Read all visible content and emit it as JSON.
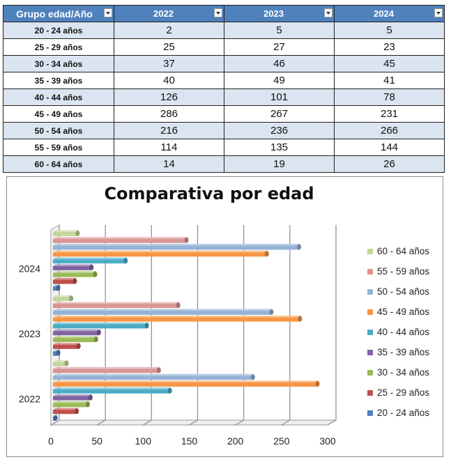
{
  "table": {
    "headers": [
      "Grupo edad/Año",
      "2022",
      "2023",
      "2024"
    ],
    "rows": [
      {
        "age": "20 - 24 años",
        "values": [
          "2",
          "5",
          "5"
        ]
      },
      {
        "age": "25 - 29 años",
        "values": [
          "25",
          "27",
          "23"
        ]
      },
      {
        "age": "30 - 34 años",
        "values": [
          "37",
          "46",
          "45"
        ]
      },
      {
        "age": "35 - 39 años",
        "values": [
          "40",
          "49",
          "41"
        ]
      },
      {
        "age": "40 - 44 años",
        "values": [
          "126",
          "101",
          "78"
        ]
      },
      {
        "age": "45 - 49 años",
        "values": [
          "286",
          "267",
          "231"
        ]
      },
      {
        "age": "50 - 54 años",
        "values": [
          "216",
          "236",
          "266"
        ]
      },
      {
        "age": "55 - 59 años",
        "values": [
          "114",
          "135",
          "144"
        ]
      },
      {
        "age": "60 - 64 años",
        "values": [
          "14",
          "19",
          "26"
        ]
      }
    ],
    "header_color": "#4f81bd",
    "band_color": "#dbe5f1",
    "icons": [
      "dropdown-arrow-icon"
    ]
  },
  "chart_data": {
    "type": "bar",
    "orientation": "horizontal",
    "style": "3d-clustered",
    "title": "Comparativa por edad",
    "categories": [
      "2022",
      "2023",
      "2024"
    ],
    "series": [
      {
        "name": "20 - 24 años",
        "values": [
          2,
          5,
          5
        ],
        "color": "#4f81bd"
      },
      {
        "name": "25 - 29 años",
        "values": [
          25,
          27,
          23
        ],
        "color": "#c0504d"
      },
      {
        "name": "30 - 34 años",
        "values": [
          37,
          46,
          45
        ],
        "color": "#9bbb59"
      },
      {
        "name": "35 - 39 años",
        "values": [
          40,
          49,
          41
        ],
        "color": "#8064a2"
      },
      {
        "name": "40 - 44 años",
        "values": [
          126,
          101,
          78
        ],
        "color": "#4bacc6"
      },
      {
        "name": "45 - 49 años",
        "values": [
          286,
          267,
          231
        ],
        "color": "#f79646"
      },
      {
        "name": "50 - 54 años",
        "values": [
          216,
          236,
          266
        ],
        "color": "#95b3d7"
      },
      {
        "name": "55 - 59 años",
        "values": [
          114,
          135,
          144
        ],
        "color": "#d99694"
      },
      {
        "name": "60 - 64 años",
        "values": [
          14,
          19,
          26
        ],
        "color": "#c3d69b"
      }
    ],
    "xlim": [
      0,
      300
    ],
    "xticks": [
      "0",
      "50",
      "100",
      "150",
      "200",
      "250",
      "300"
    ],
    "grid": true,
    "legend_position": "right"
  }
}
